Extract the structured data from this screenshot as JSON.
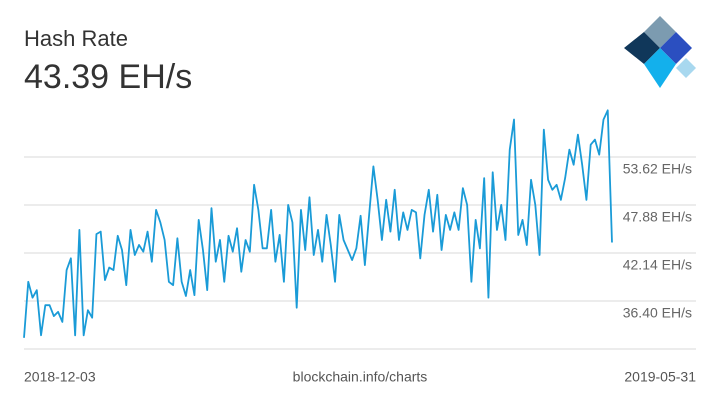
{
  "chart_data": {
    "type": "line",
    "title": "Hash Rate",
    "current_value": "43.39 EH/s",
    "source": "blockchain.info/charts",
    "color": "#1a9bd7",
    "grid": true,
    "categories": [
      "2018-12-03",
      null,
      null,
      null,
      null,
      null,
      null,
      null,
      null,
      null,
      null,
      null,
      null,
      null,
      null,
      null,
      null,
      null,
      null,
      null,
      null,
      null,
      null,
      null,
      null,
      null,
      null,
      null,
      null,
      null,
      null,
      null,
      null,
      null,
      null,
      null,
      null,
      null,
      null,
      null,
      null,
      null,
      null,
      null,
      null,
      null,
      null,
      null,
      null,
      null,
      null,
      null,
      null,
      null,
      null,
      null,
      null,
      null,
      null,
      null,
      null,
      null,
      null,
      null,
      null,
      null,
      null,
      null,
      null,
      null,
      null,
      null,
      null,
      null,
      null,
      null,
      null,
      null,
      null,
      null,
      null,
      null,
      null,
      null,
      null,
      null,
      null,
      null,
      null,
      null,
      null,
      null,
      null,
      null,
      null,
      null,
      null,
      null,
      null,
      null,
      null,
      null,
      null,
      null,
      null,
      null,
      null,
      null,
      null,
      null,
      null,
      null,
      null,
      null,
      null,
      null,
      null,
      null,
      null,
      null,
      null,
      null,
      null,
      null,
      null,
      null,
      null,
      null,
      null,
      null,
      null,
      null,
      null,
      null,
      null,
      null,
      null,
      null,
      "2019-05-31"
    ],
    "values": [
      32.0,
      38.7,
      36.8,
      37.7,
      32.3,
      35.9,
      35.9,
      34.6,
      35.1,
      33.9,
      40.1,
      41.5,
      32.3,
      44.9,
      32.3,
      35.3,
      34.4,
      44.4,
      44.7,
      38.9,
      40.4,
      40.1,
      44.2,
      42.5,
      38.3,
      44.9,
      41.9,
      43.1,
      42.3,
      44.7,
      41.1,
      47.3,
      45.8,
      43.7,
      38.7,
      38.3,
      43.9,
      38.7,
      37.0,
      40.1,
      37.1,
      46.1,
      42.5,
      37.7,
      47.5,
      41.1,
      43.7,
      38.7,
      44.2,
      42.3,
      45.1,
      39.9,
      43.7,
      42.3,
      50.3,
      47.3,
      42.7,
      42.7,
      47.3,
      41.1,
      44.3,
      38.7,
      47.9,
      45.8,
      35.6,
      47.3,
      42.5,
      48.8,
      41.9,
      44.9,
      41.1,
      46.7,
      43.1,
      38.7,
      46.7,
      43.7,
      42.5,
      41.3,
      42.7,
      46.6,
      40.7,
      46.7,
      52.5,
      48.5,
      43.7,
      48.5,
      44.7,
      49.7,
      43.7,
      47.0,
      44.9,
      47.3,
      47.0,
      41.5,
      46.7,
      49.7,
      44.7,
      49.1,
      42.5,
      46.7,
      44.9,
      47.0,
      44.9,
      49.9,
      47.9,
      38.7,
      46.1,
      42.7,
      51.1,
      36.8,
      51.8,
      44.9,
      47.9,
      43.7,
      54.5,
      58.1,
      44.3,
      46.1,
      43.1,
      50.9,
      47.9,
      41.9,
      56.9,
      50.9,
      49.7,
      50.3,
      48.5,
      51.1,
      54.5,
      52.7,
      56.3,
      52.7,
      48.5,
      55.1,
      55.7,
      53.9,
      58.1,
      59.2,
      43.4
    ],
    "ylim": [
      30.66,
      60.44
    ],
    "yticks": [
      {
        "value": 36.4,
        "label": "36.40 EH/s"
      },
      {
        "value": 42.14,
        "label": "42.14 EH/s"
      },
      {
        "value": 47.88,
        "label": "47.88 EH/s"
      },
      {
        "value": 53.62,
        "label": "53.62 EH/s"
      }
    ]
  }
}
